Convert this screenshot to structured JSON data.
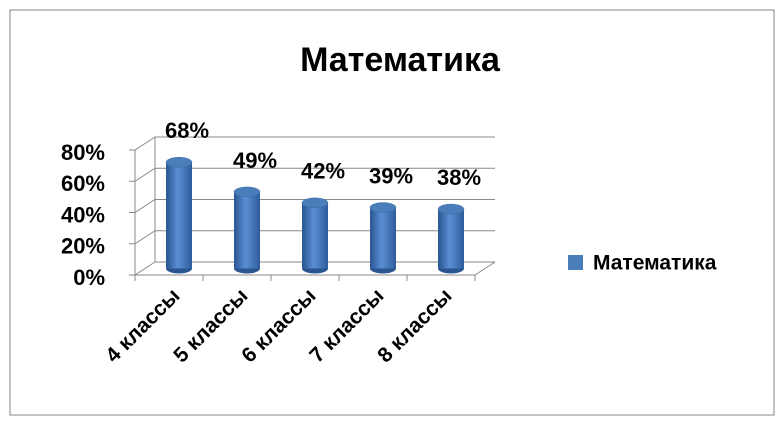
{
  "chart_data": {
    "type": "bar",
    "title": "Математика",
    "categories": [
      "4 классы",
      "5 классы",
      "6 классы",
      "7 классы",
      "8 классы"
    ],
    "series": [
      {
        "name": "Математика",
        "color": "#4a7ebb",
        "values": [
          68,
          49,
          42,
          39,
          38
        ],
        "value_labels": [
          "68%",
          "49%",
          "42%",
          "39%",
          "38%"
        ]
      }
    ],
    "ylim": [
      0,
      80
    ],
    "yticks": [
      {
        "value": 0,
        "label": "0%"
      },
      {
        "value": 20,
        "label": "20%"
      },
      {
        "value": 40,
        "label": "40%"
      },
      {
        "value": 60,
        "label": "60%"
      },
      {
        "value": 80,
        "label": "80%"
      }
    ],
    "grid": true,
    "legend": "right"
  }
}
